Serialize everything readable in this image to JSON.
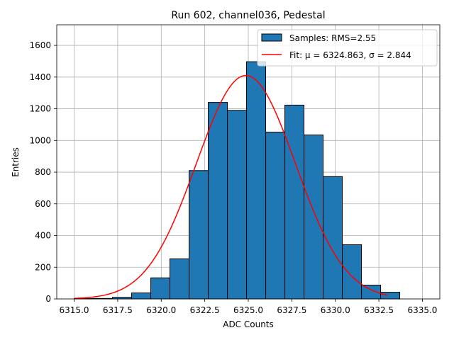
{
  "chart_data": {
    "type": "bar",
    "title": "Run 602, channel036, Pedestal",
    "xlabel": "ADC Counts",
    "ylabel": "Entries",
    "xlim": [
      6314.0,
      6336.0
    ],
    "ylim": [
      0,
      1730
    ],
    "xticks": [
      6315.0,
      6317.5,
      6320.0,
      6322.5,
      6325.0,
      6327.5,
      6330.0,
      6332.5,
      6335.0
    ],
    "xtick_labels": [
      "6315.0",
      "6317.5",
      "6320.0",
      "6322.5",
      "6325.0",
      "6327.5",
      "6330.0",
      "6332.5",
      "6335.0"
    ],
    "yticks": [
      0,
      200,
      400,
      600,
      800,
      1000,
      1200,
      1400,
      1600
    ],
    "ytick_labels": [
      "0",
      "200",
      "400",
      "600",
      "800",
      "1000",
      "1200",
      "1400",
      "1600"
    ],
    "grid": true,
    "legend_position": "top-right",
    "histogram": {
      "name": "Samples: RMS=2.55",
      "color": "#1f77b4",
      "edgecolor": "#000000",
      "bin_edges": [
        6315.0,
        6316.1,
        6317.2,
        6318.3,
        6319.4,
        6320.5,
        6321.6,
        6322.7,
        6323.8,
        6324.9,
        6326.0,
        6327.1,
        6328.2,
        6329.3,
        6330.4,
        6331.5,
        6332.6,
        6333.7
      ],
      "counts": [
        2,
        3,
        10,
        38,
        133,
        253,
        810,
        1240,
        1190,
        1497,
        1053,
        1223,
        1035,
        772,
        342,
        87,
        42,
        16
      ]
    },
    "fit": {
      "label": "Fit: μ = 6324.863, σ = 2.844",
      "color": "#ff0000",
      "mu": 6324.863,
      "sigma": 2.844,
      "amplitude": 1410,
      "x_range": [
        6315.0,
        6333.0
      ]
    }
  }
}
